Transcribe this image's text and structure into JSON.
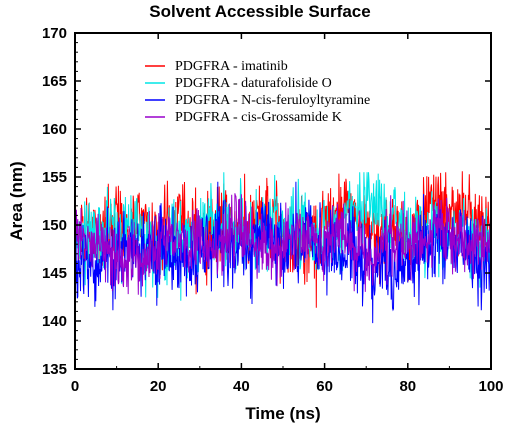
{
  "chart_data": {
    "type": "line",
    "title": "Solvent Accessible Surface",
    "xlabel": "Time (ns)",
    "ylabel": "Area (nm)",
    "xlim": [
      0,
      100
    ],
    "ylim": [
      135,
      170
    ],
    "xticks": [
      "0",
      "20",
      "40",
      "60",
      "80",
      "100"
    ],
    "yticks": [
      "135",
      "140",
      "145",
      "150",
      "155",
      "160",
      "165",
      "170"
    ],
    "legend_position": "upper-center",
    "grid": false,
    "series": [
      {
        "name": "PDGFRA - imatinib",
        "color": "#ff0000",
        "mean": 149.8,
        "spread": 1.9,
        "min": 140.5,
        "max": 156.5
      },
      {
        "name": "PDGFRA - daturafoliside O",
        "color": "#00e5e5",
        "mean": 149.3,
        "spread": 1.9,
        "min": 141.5,
        "max": 155.5
      },
      {
        "name": "PDGFRA - N-cis-feruloyltyramine",
        "color": "#0000ff",
        "mean": 146.8,
        "spread": 2.0,
        "min": 138.0,
        "max": 154.5
      },
      {
        "name": "PDGFRA - cis-Grossamide K",
        "color": "#9900cc",
        "mean": 148.0,
        "spread": 1.6,
        "min": 140.0,
        "max": 154.5
      }
    ]
  }
}
